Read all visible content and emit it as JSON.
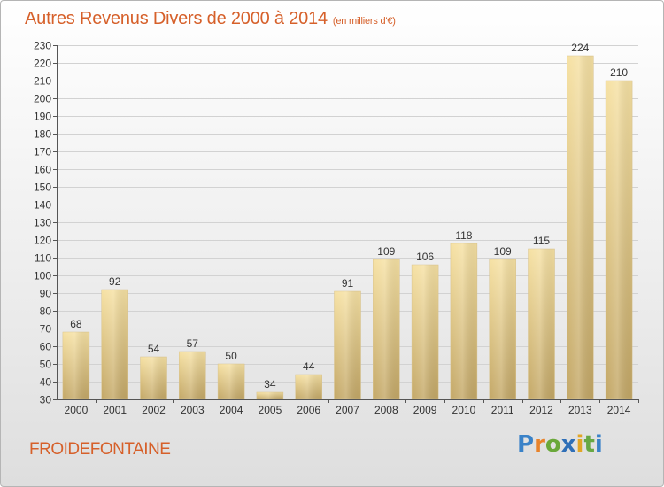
{
  "title": "Autres Revenus Divers de 2000 à 2014",
  "subtitle": "(en milliers d'€)",
  "location": "FROIDEFONTAINE",
  "logo": {
    "text": "Proxiti",
    "letters": [
      "P",
      "r",
      "o",
      "x",
      "i",
      "t",
      "i"
    ]
  },
  "colors": {
    "title": "#d6602a",
    "bar_top": "#f5dea0",
    "bar_bottom": "#c4a968"
  },
  "chart_data": {
    "type": "bar",
    "title": "Autres Revenus Divers de 2000 à 2014",
    "subtitle": "(en milliers d'€)",
    "xlabel": "",
    "ylabel": "",
    "categories": [
      "2000",
      "2001",
      "2002",
      "2003",
      "2004",
      "2005",
      "2006",
      "2007",
      "2008",
      "2009",
      "2010",
      "2011",
      "2012",
      "2013",
      "2014"
    ],
    "values": [
      68,
      92,
      54,
      57,
      50,
      34,
      44,
      91,
      109,
      106,
      118,
      109,
      115,
      224,
      210
    ],
    "ylim": [
      30,
      230
    ],
    "yticks": [
      30,
      40,
      50,
      60,
      70,
      80,
      90,
      100,
      110,
      120,
      130,
      140,
      150,
      160,
      170,
      180,
      190,
      200,
      210,
      220,
      230
    ],
    "grid": true,
    "data_labels": true
  }
}
